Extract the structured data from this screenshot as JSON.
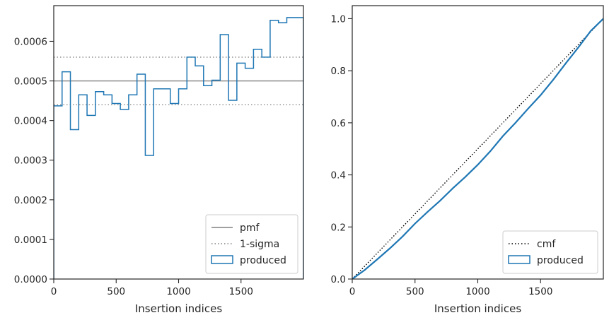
{
  "chart_data": [
    {
      "type": "line",
      "xlabel": "Insertion indices",
      "ylabel": "",
      "xlim": [
        0,
        2000
      ],
      "ylim": [
        0,
        0.00069
      ],
      "x_ticks": [
        0,
        500,
        1000,
        1500
      ],
      "y_ticks": [
        0.0,
        0.0001,
        0.0002,
        0.0003,
        0.0004,
        0.0005,
        0.0006
      ],
      "x_tick_labels": [
        "0",
        "500",
        "1000",
        "1500"
      ],
      "y_tick_labels": [
        "0.0000",
        "0.0001",
        "0.0002",
        "0.0003",
        "0.0004",
        "0.0005",
        "0.0006"
      ],
      "grid": false,
      "legend_position": "lower-right",
      "reference_lines": [
        {
          "name": "pmf",
          "y": 0.0005,
          "style": "solid",
          "color": "#808080"
        },
        {
          "name": "1-sigma",
          "y": 0.00056,
          "style": "dotted",
          "color": "#808080"
        },
        {
          "name": "1-sigma",
          "y": 0.00044,
          "style": "dotted",
          "color": "#808080"
        }
      ],
      "histogram": {
        "name": "produced",
        "color": "#1f77b4",
        "bin_edges": [
          0,
          66.7,
          133.3,
          200,
          266.7,
          333.3,
          400,
          466.7,
          533.3,
          600,
          666.7,
          733.3,
          800,
          866.7,
          933.3,
          1000,
          1066.7,
          1133.3,
          1200,
          1266.7,
          1333.3,
          1400,
          1466.7,
          1533.3,
          1600,
          1666.7,
          1733.3,
          1800,
          1866.7,
          1933.3,
          2000
        ],
        "values": [
          0.000437,
          0.000523,
          0.000377,
          0.000465,
          0.000413,
          0.000473,
          0.000465,
          0.000443,
          0.000428,
          0.000465,
          0.000517,
          0.000312,
          0.00048,
          0.00048,
          0.000443,
          0.00048,
          0.00056,
          0.000538,
          0.000488,
          0.000502,
          0.000617,
          0.000451,
          0.000545,
          0.000532,
          0.00058,
          0.00056,
          0.000653,
          0.000647,
          0.00066,
          0.00066
        ]
      },
      "legend": [
        "pmf",
        "1-sigma",
        "produced"
      ]
    },
    {
      "type": "line",
      "xlabel": "Insertion indices",
      "ylabel": "",
      "xlim": [
        0,
        2000
      ],
      "ylim": [
        0,
        1.05
      ],
      "x_ticks": [
        0,
        500,
        1000,
        1500
      ],
      "y_ticks": [
        0.0,
        0.2,
        0.4,
        0.6,
        0.8,
        1.0
      ],
      "x_tick_labels": [
        "0",
        "500",
        "1000",
        "1500"
      ],
      "y_tick_labels": [
        "0.0",
        "0.2",
        "0.4",
        "0.6",
        "0.8",
        "1.0"
      ],
      "grid": false,
      "legend_position": "lower-right",
      "series": [
        {
          "name": "cmf",
          "style": "dotted",
          "color": "#000000",
          "x": [
            0,
            2000
          ],
          "y": [
            0,
            1.0
          ]
        },
        {
          "name": "produced",
          "style": "step",
          "color": "#1f77b4",
          "x": [
            0,
            100,
            200,
            300,
            400,
            500,
            600,
            700,
            800,
            900,
            1000,
            1100,
            1200,
            1300,
            1400,
            1500,
            1600,
            1700,
            1800,
            1900,
            2000
          ],
          "y": [
            0,
            0.035,
            0.076,
            0.118,
            0.163,
            0.213,
            0.258,
            0.301,
            0.348,
            0.392,
            0.439,
            0.491,
            0.549,
            0.6,
            0.654,
            0.706,
            0.765,
            0.828,
            0.889,
            0.953,
            1.0
          ]
        }
      ],
      "legend": [
        "cmf",
        "produced"
      ]
    }
  ]
}
